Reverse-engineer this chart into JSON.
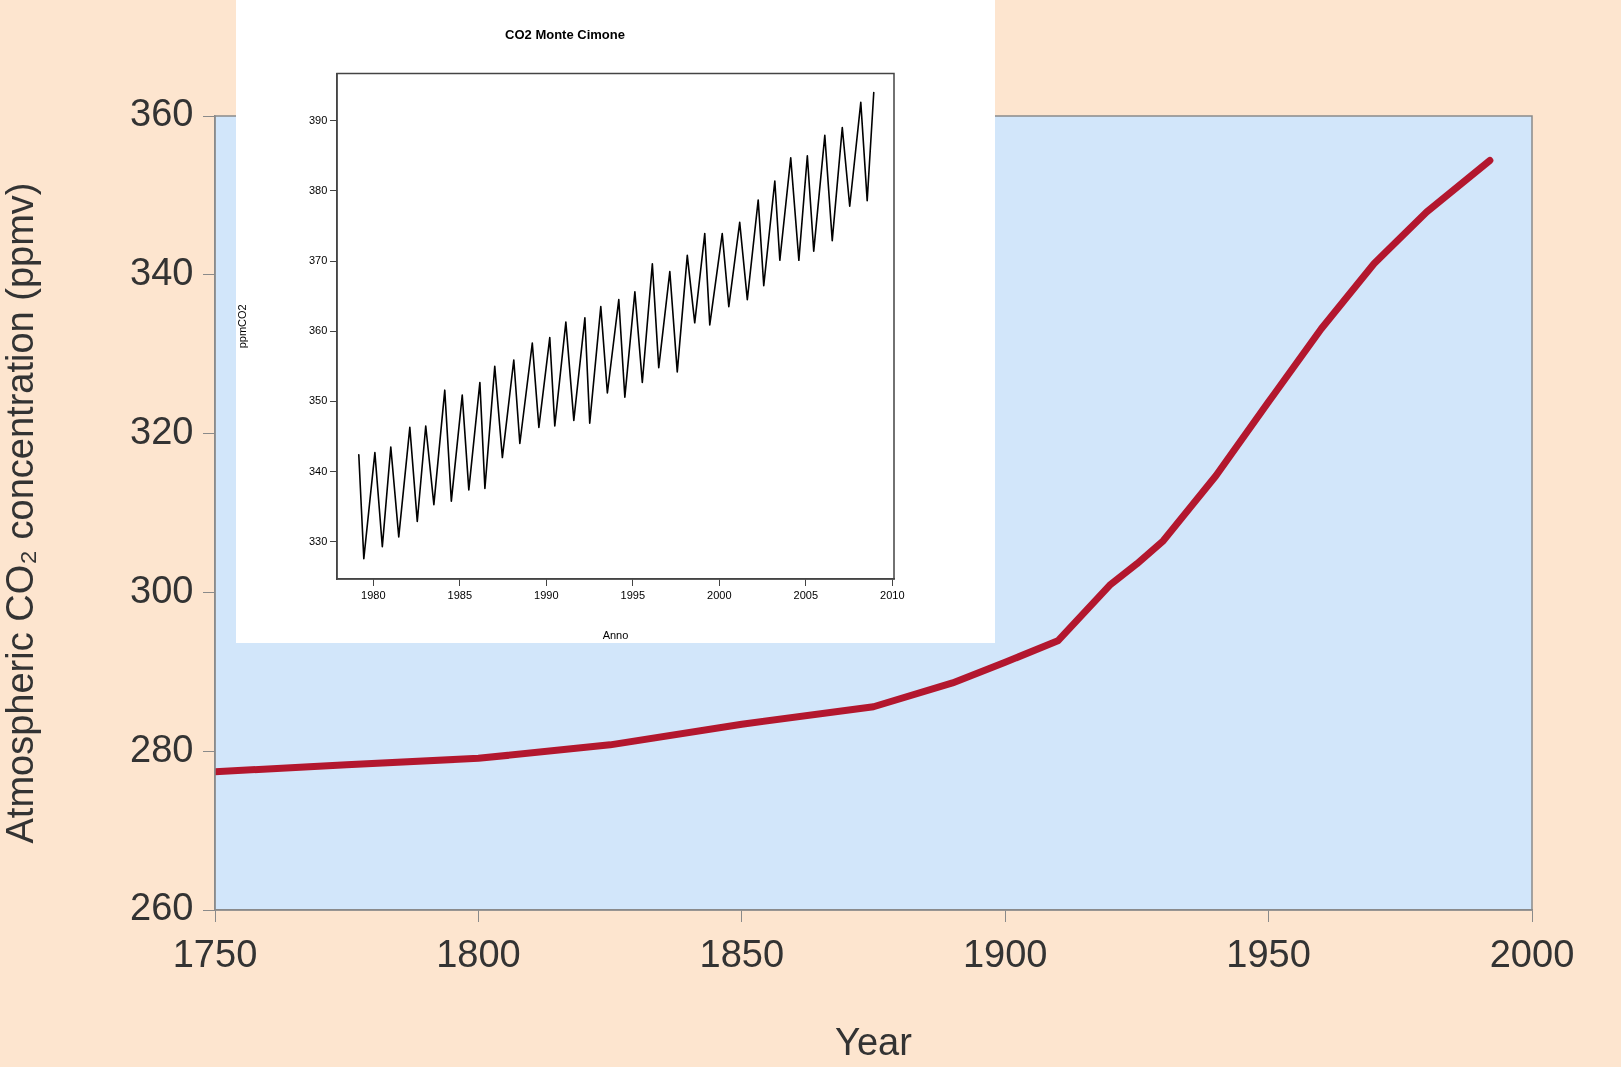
{
  "chart_data": [
    {
      "type": "line",
      "xlabel": "Year",
      "ylabel": "Atmospheric CO₂ concentration (ppmv)",
      "x": [
        1750,
        1775,
        1800,
        1825,
        1850,
        1875,
        1890,
        1900,
        1910,
        1920,
        1925,
        1930,
        1940,
        1950,
        1960,
        1970,
        1980,
        1992
      ],
      "series": [
        {
          "color": "#b3172e",
          "values": [
            277.4,
            278.3,
            279.1,
            280.8,
            283.4,
            285.6,
            288.6,
            291.2,
            293.9,
            301,
            303.6,
            306.5,
            314.7,
            324,
            333.2,
            341.4,
            347.9,
            354.4
          ]
        }
      ],
      "xlim": [
        1750,
        2000
      ],
      "xticks": [
        1750,
        1800,
        1850,
        1900,
        1950,
        2000
      ],
      "ylim": [
        260,
        360
      ],
      "yticks": [
        260,
        280,
        300,
        320,
        340,
        360
      ]
    },
    {
      "type": "line",
      "title": "CO2 Monte Cimone",
      "xlabel": "Anno",
      "ylabel": "ppmCO2",
      "x": [
        1979.16,
        1979.45,
        1980.09,
        1980.52,
        1981.01,
        1981.47,
        1982.11,
        1982.54,
        1983.03,
        1983.5,
        1984.13,
        1984.51,
        1985.14,
        1985.52,
        1986.16,
        1986.45,
        1987.02,
        1987.46,
        1988.12,
        1988.47,
        1989.19,
        1989.57,
        1990.2,
        1990.49,
        1991.13,
        1991.59,
        1992.23,
        1992.51,
        1993.15,
        1993.53,
        1994.19,
        1994.54,
        1995.12,
        1995.55,
        1996.13,
        1996.5,
        1997.14,
        1997.57,
        1998.15,
        1998.58,
        1999.16,
        1999.45,
        2000.17,
        2000.55,
        2001.18,
        2001.62,
        2002.25,
        2002.57,
        2003.21,
        2003.5,
        2004.13,
        2004.6,
        2005.09,
        2005.46,
        2006.1,
        2006.53,
        2007.11,
        2007.54,
        2008.18,
        2008.55,
        2008.93
      ],
      "series": [
        {
          "color": "#000000",
          "values": [
            342.4,
            327.6,
            342.7,
            329.3,
            343.5,
            330.7,
            346.3,
            332.9,
            346.5,
            335.3,
            351.6,
            335.8,
            350.9,
            337.4,
            352.7,
            337.6,
            355,
            342,
            355.9,
            344,
            358.3,
            346.3,
            359.1,
            346.5,
            361.3,
            347.3,
            361.9,
            346.9,
            363.5,
            351.2,
            364.5,
            350.6,
            365.6,
            352.7,
            369.6,
            354.8,
            368.5,
            354.2,
            370.8,
            361.2,
            373.9,
            360.9,
            373.9,
            363.5,
            375.5,
            364.5,
            378.7,
            366.5,
            381.4,
            370.1,
            384.7,
            370.1,
            385,
            371.4,
            387.9,
            372.9,
            389,
            377.8,
            392.6,
            378.6,
            394
          ]
        }
      ],
      "xlim": [
        1977.9,
        2010.1
      ],
      "xticks": [
        1980,
        1985,
        1990,
        1995,
        2000,
        2005,
        2010
      ],
      "ylim": [
        324.7,
        396.7
      ],
      "yticks": [
        330,
        340,
        350,
        360,
        370,
        380,
        390
      ]
    }
  ]
}
